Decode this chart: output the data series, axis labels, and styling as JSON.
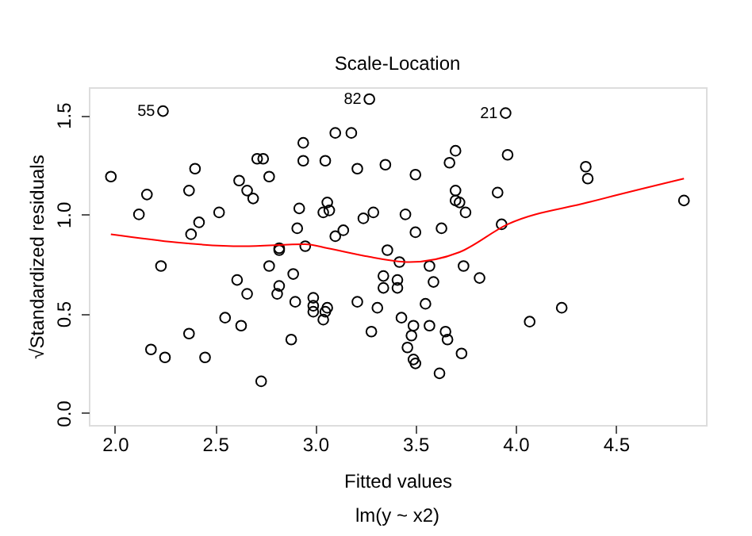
{
  "chart_data": {
    "type": "scatter",
    "title": "Scale-Location",
    "xlabel": "Fitted values",
    "ylabel": "√Standardized residuals",
    "annotations": [
      "lm(y ~ x2)",
      {
        "text": "55",
        "x": 2.24,
        "y": 1.52
      },
      {
        "text": "82",
        "x": 3.27,
        "y": 1.58
      },
      {
        "text": "21",
        "x": 3.95,
        "y": 1.51
      }
    ],
    "xlim": [
      1.87,
      4.95
    ],
    "ylim": [
      -0.06,
      1.64
    ],
    "xticks": [
      {
        "value": 2,
        "label": "2.0"
      },
      {
        "value": 2.5,
        "label": "2.5"
      },
      {
        "value": 3,
        "label": "3.0"
      },
      {
        "value": 3.5,
        "label": "3.5"
      },
      {
        "value": 4,
        "label": "4.0"
      },
      {
        "value": 4.5,
        "label": "4.5"
      }
    ],
    "yticks": [
      {
        "value": 0,
        "label": "0.0"
      },
      {
        "value": 0.5,
        "label": "0.5"
      },
      {
        "value": 1,
        "label": "1.0"
      },
      {
        "value": 1.5,
        "label": "1.5"
      }
    ],
    "grid": false,
    "series": [
      {
        "marker": "circle",
        "color": "#000000",
        "x": [
          1.98,
          2.24,
          3.27,
          3.95,
          2.16,
          2.12,
          2.23,
          2.37,
          2.4,
          2.42,
          2.38,
          2.52,
          2.62,
          2.66,
          2.69,
          2.71,
          2.74,
          2.77,
          2.94,
          2.94,
          3.05,
          3.1,
          3.18,
          3.21,
          2.92,
          3.06,
          3.04,
          3.07,
          2.91,
          3.14,
          3.1,
          3.24,
          3.29,
          2.95,
          2.82,
          2.82,
          2.77,
          2.89,
          2.61,
          2.82,
          2.81,
          2.66,
          2.9,
          2.99,
          2.99,
          2.99,
          3.06,
          3.05,
          3.04,
          3.21,
          3.31,
          3.28,
          2.55,
          2.63,
          2.37,
          2.18,
          2.25,
          2.45,
          2.88,
          2.73,
          3.35,
          3.5,
          3.67,
          3.7,
          3.96,
          4.35,
          4.36,
          3.7,
          3.7,
          3.72,
          3.75,
          3.91,
          3.45,
          3.5,
          3.63,
          3.93,
          4.84,
          3.36,
          3.42,
          3.57,
          3.74,
          3.82,
          3.34,
          3.41,
          3.59,
          3.34,
          3.41,
          3.55,
          3.43,
          3.49,
          3.48,
          3.57,
          3.65,
          3.66,
          3.46,
          3.49,
          3.5,
          3.62,
          3.73,
          4.07,
          4.23
        ],
        "values": [
          1.19,
          1.52,
          1.58,
          1.51,
          1.1,
          1.0,
          0.74,
          1.12,
          1.23,
          0.96,
          0.9,
          1.01,
          1.17,
          1.12,
          1.08,
          1.28,
          1.28,
          1.19,
          1.36,
          1.27,
          1.27,
          1.41,
          1.41,
          1.23,
          1.03,
          1.06,
          1.01,
          1.02,
          0.93,
          0.92,
          0.89,
          0.98,
          1.01,
          0.84,
          0.83,
          0.82,
          0.74,
          0.7,
          0.67,
          0.64,
          0.6,
          0.6,
          0.56,
          0.58,
          0.54,
          0.51,
          0.53,
          0.51,
          0.47,
          0.56,
          0.53,
          0.41,
          0.48,
          0.44,
          0.4,
          0.32,
          0.28,
          0.28,
          0.37,
          0.16,
          1.25,
          1.2,
          1.26,
          1.32,
          1.3,
          1.24,
          1.18,
          1.12,
          1.07,
          1.06,
          1.01,
          1.11,
          1.0,
          0.91,
          0.93,
          0.95,
          1.07,
          0.82,
          0.76,
          0.74,
          0.74,
          0.68,
          0.69,
          0.67,
          0.66,
          0.63,
          0.63,
          0.55,
          0.48,
          0.44,
          0.39,
          0.44,
          0.41,
          0.37,
          0.33,
          0.27,
          0.25,
          0.2,
          0.3,
          0.46,
          0.53
        ]
      },
      {
        "type": "line",
        "marker": "none",
        "color": "#ff0000",
        "x": [
          1.98,
          2.64,
          2.95,
          3.06,
          3.25,
          3.47,
          3.72,
          3.96,
          4.36,
          4.84
        ],
        "values": [
          0.9,
          0.84,
          0.85,
          0.83,
          0.79,
          0.76,
          0.81,
          0.95,
          1.06,
          1.18
        ]
      }
    ]
  }
}
